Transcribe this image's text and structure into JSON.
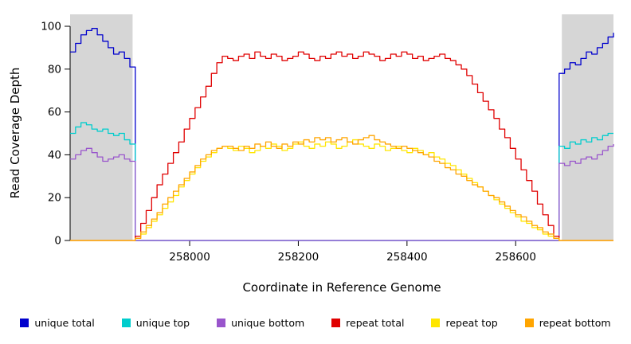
{
  "chart_data": {
    "type": "line",
    "title": "",
    "xlabel": "Coordinate in Reference Genome",
    "ylabel": "Read Coverage Depth",
    "xlim": [
      257780,
      258780
    ],
    "ylim": [
      0,
      100
    ],
    "x_ticks": [
      258000,
      258200,
      258400,
      258600
    ],
    "y_ticks": [
      0,
      20,
      40,
      60,
      80,
      100
    ],
    "grid": false,
    "legend_position": "bottom",
    "shaded_color": "#d6d6d6",
    "shaded_regions": [
      {
        "x0": 257780,
        "x1": 257895
      },
      {
        "x0": 258685,
        "x1": 258780
      }
    ],
    "x_start": 257780,
    "x_step": 10,
    "series": [
      {
        "name": "unique total",
        "color": "#0000cd",
        "values": [
          88,
          92,
          96,
          98,
          99,
          96,
          93,
          90,
          87,
          88,
          85,
          81,
          0,
          0,
          0,
          0,
          0,
          0,
          0,
          0,
          0,
          0,
          0,
          0,
          0,
          0,
          0,
          0,
          0,
          0,
          0,
          0,
          0,
          0,
          0,
          0,
          0,
          0,
          0,
          0,
          0,
          0,
          0,
          0,
          0,
          0,
          0,
          0,
          0,
          0,
          0,
          0,
          0,
          0,
          0,
          0,
          0,
          0,
          0,
          0,
          0,
          0,
          0,
          0,
          0,
          0,
          0,
          0,
          0,
          0,
          0,
          0,
          0,
          0,
          0,
          0,
          0,
          0,
          0,
          0,
          0,
          0,
          0,
          0,
          0,
          0,
          0,
          0,
          0,
          0,
          78,
          80,
          83,
          82,
          85,
          88,
          87,
          90,
          92,
          95,
          97
        ]
      },
      {
        "name": "unique top",
        "color": "#00cdcd",
        "values": [
          50,
          53,
          55,
          54,
          52,
          51,
          52,
          50,
          49,
          50,
          47,
          45,
          0,
          0,
          0,
          0,
          0,
          0,
          0,
          0,
          0,
          0,
          0,
          0,
          0,
          0,
          0,
          0,
          0,
          0,
          0,
          0,
          0,
          0,
          0,
          0,
          0,
          0,
          0,
          0,
          0,
          0,
          0,
          0,
          0,
          0,
          0,
          0,
          0,
          0,
          0,
          0,
          0,
          0,
          0,
          0,
          0,
          0,
          0,
          0,
          0,
          0,
          0,
          0,
          0,
          0,
          0,
          0,
          0,
          0,
          0,
          0,
          0,
          0,
          0,
          0,
          0,
          0,
          0,
          0,
          0,
          0,
          0,
          0,
          0,
          0,
          0,
          0,
          0,
          0,
          44,
          43,
          46,
          45,
          47,
          46,
          48,
          47,
          49,
          50,
          50
        ]
      },
      {
        "name": "unique bottom",
        "color": "#9955cc",
        "values": [
          38,
          40,
          42,
          43,
          41,
          39,
          37,
          38,
          39,
          40,
          38,
          37,
          0,
          0,
          0,
          0,
          0,
          0,
          0,
          0,
          0,
          0,
          0,
          0,
          0,
          0,
          0,
          0,
          0,
          0,
          0,
          0,
          0,
          0,
          0,
          0,
          0,
          0,
          0,
          0,
          0,
          0,
          0,
          0,
          0,
          0,
          0,
          0,
          0,
          0,
          0,
          0,
          0,
          0,
          0,
          0,
          0,
          0,
          0,
          0,
          0,
          0,
          0,
          0,
          0,
          0,
          0,
          0,
          0,
          0,
          0,
          0,
          0,
          0,
          0,
          0,
          0,
          0,
          0,
          0,
          0,
          0,
          0,
          0,
          0,
          0,
          0,
          0,
          0,
          0,
          36,
          35,
          37,
          36,
          38,
          39,
          38,
          40,
          42,
          44,
          45
        ]
      },
      {
        "name": "repeat total",
        "color": "#e00000",
        "values": [
          0,
          0,
          0,
          0,
          0,
          0,
          0,
          0,
          0,
          0,
          0,
          0,
          2,
          8,
          14,
          20,
          26,
          31,
          36,
          41,
          46,
          52,
          57,
          62,
          67,
          72,
          78,
          83,
          86,
          85,
          84,
          86,
          87,
          85,
          88,
          86,
          85,
          87,
          86,
          84,
          85,
          86,
          88,
          87,
          85,
          84,
          86,
          85,
          87,
          88,
          86,
          87,
          85,
          86,
          88,
          87,
          86,
          84,
          85,
          87,
          86,
          88,
          87,
          85,
          86,
          84,
          85,
          86,
          87,
          85,
          84,
          82,
          80,
          77,
          73,
          69,
          65,
          61,
          57,
          52,
          48,
          43,
          38,
          33,
          28,
          23,
          17,
          12,
          7,
          2,
          0,
          0,
          0,
          0,
          0,
          0,
          0,
          0,
          0,
          0,
          0
        ]
      },
      {
        "name": "repeat top",
        "color": "#ffe600",
        "values": [
          0,
          0,
          0,
          0,
          0,
          0,
          0,
          0,
          0,
          0,
          0,
          0,
          1,
          3,
          6,
          9,
          12,
          15,
          18,
          21,
          25,
          28,
          31,
          34,
          37,
          39,
          41,
          43,
          44,
          43,
          42,
          44,
          43,
          41,
          42,
          44,
          43,
          45,
          44,
          42,
          43,
          45,
          46,
          44,
          43,
          45,
          44,
          46,
          45,
          43,
          44,
          46,
          47,
          45,
          44,
          43,
          45,
          44,
          42,
          43,
          44,
          42,
          41,
          43,
          42,
          40,
          41,
          39,
          38,
          36,
          35,
          33,
          31,
          29,
          27,
          25,
          23,
          21,
          19,
          17,
          15,
          13,
          11,
          9,
          8,
          6,
          5,
          3,
          2,
          1,
          0,
          0,
          0,
          0,
          0,
          0,
          0,
          0,
          0,
          0,
          0
        ]
      },
      {
        "name": "repeat bottom",
        "color": "#ffa500",
        "values": [
          0,
          0,
          0,
          0,
          0,
          0,
          0,
          0,
          0,
          0,
          0,
          0,
          1,
          4,
          7,
          10,
          13,
          17,
          20,
          23,
          26,
          29,
          32,
          35,
          38,
          40,
          42,
          43,
          44,
          44,
          43,
          42,
          44,
          43,
          45,
          44,
          46,
          44,
          43,
          45,
          44,
          46,
          45,
          47,
          46,
          48,
          47,
          48,
          46,
          47,
          48,
          46,
          45,
          47,
          48,
          49,
          47,
          46,
          45,
          44,
          43,
          44,
          43,
          42,
          41,
          40,
          39,
          37,
          36,
          34,
          33,
          31,
          30,
          28,
          26,
          25,
          23,
          21,
          20,
          18,
          16,
          14,
          12,
          11,
          9,
          7,
          6,
          4,
          3,
          1,
          0,
          0,
          0,
          0,
          0,
          0,
          0,
          0,
          0,
          0,
          0
        ]
      }
    ]
  },
  "legend": {
    "items": [
      {
        "label": "unique total"
      },
      {
        "label": "unique top"
      },
      {
        "label": "unique bottom"
      },
      {
        "label": "repeat total"
      },
      {
        "label": "repeat top"
      },
      {
        "label": "repeat bottom"
      }
    ]
  }
}
